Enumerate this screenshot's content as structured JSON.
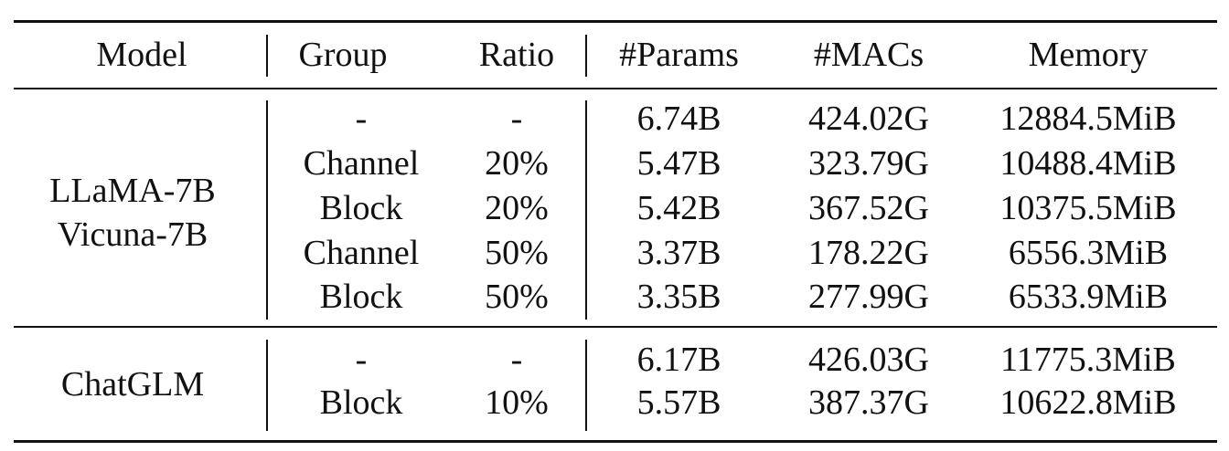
{
  "table": {
    "headers": [
      "Model",
      "Group",
      "Ratio",
      "#Params",
      "#MACs",
      "Memory"
    ],
    "groups": [
      {
        "models": [
          "LLaMA-7B",
          "Vicuna-7B"
        ],
        "rows": [
          [
            "-",
            "-",
            "6.74B",
            "424.02G",
            "12884.5MiB"
          ],
          [
            "Channel",
            "20%",
            "5.47B",
            "323.79G",
            "10488.4MiB"
          ],
          [
            "Block",
            "20%",
            "5.42B",
            "367.52G",
            "10375.5MiB"
          ],
          [
            "Channel",
            "50%",
            "3.37B",
            "178.22G",
            "6556.3MiB"
          ],
          [
            "Block",
            "50%",
            "3.35B",
            "277.99G",
            "6533.9MiB"
          ]
        ]
      },
      {
        "models": [
          "ChatGLM"
        ],
        "rows": [
          [
            "-",
            "-",
            "6.17B",
            "426.03G",
            "11775.3MiB"
          ],
          [
            "Block",
            "10%",
            "5.57B",
            "387.37G",
            "10622.8MiB"
          ]
        ]
      }
    ]
  }
}
